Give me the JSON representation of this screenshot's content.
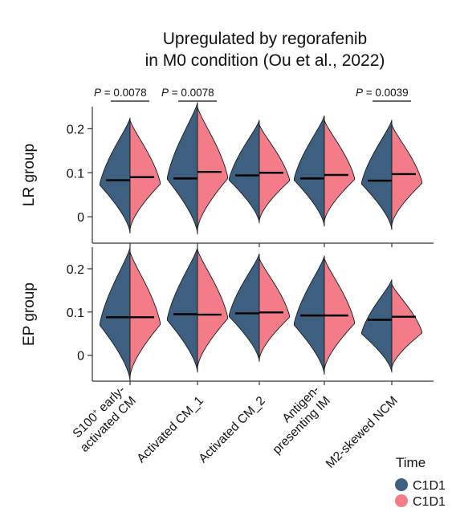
{
  "chart_data": {
    "type": "split-violin",
    "title": [
      "Upregulated by regorafenib",
      "in M0 condition (Ou et al., 2022)"
    ],
    "categories": [
      "S100+ early-activated CM",
      "Activated CM_1",
      "Activated CM_2",
      "Antigen-presenting IM",
      "M2-skewed NCM"
    ],
    "category_label_lines": [
      [
        "S100",
        "activated CM"
      ],
      [
        "Activated CM_1"
      ],
      [
        "Activated CM_2"
      ],
      [
        "Antigen-",
        "presenting IM"
      ],
      [
        "M2-skewed NCM"
      ]
    ],
    "category_label_extra": {
      "superscript": "+",
      "suffix": " early-"
    },
    "legend": {
      "title": "Time",
      "entries": [
        {
          "label": "C1D1",
          "color": "#3d5f80"
        },
        {
          "label": "C1D1",
          "color": "#f47c88"
        }
      ]
    },
    "yticks": [
      0,
      0.1,
      0.2
    ],
    "ytick_labels": [
      "0",
      "0.1",
      "0.2"
    ],
    "ylim": [
      -0.06,
      0.25
    ],
    "panels": [
      {
        "ylabel": "LR group",
        "pvalues": [
          {
            "index": 0,
            "label": "= 0.0078"
          },
          {
            "index": 1,
            "label": "= 0.0078"
          },
          {
            "index": 4,
            "label": "= 0.0039"
          }
        ],
        "series": [
          {
            "color": "#3d5f80",
            "medians": [
              0.083,
              0.087,
              0.094,
              0.087,
              0.082
            ],
            "mins": [
              -0.038,
              -0.04,
              -0.015,
              -0.022,
              -0.03
            ],
            "maxs": [
              0.225,
              0.26,
              0.22,
              0.23,
              0.22
            ]
          },
          {
            "color": "#f47c88",
            "medians": [
              0.09,
              0.102,
              0.1,
              0.095,
              0.097
            ],
            "mins": [
              -0.03,
              -0.03,
              -0.01,
              -0.012,
              -0.02
            ],
            "maxs": [
              0.22,
              0.25,
              0.21,
              0.22,
              0.21
            ]
          }
        ]
      },
      {
        "ylabel": "EP group",
        "pvalues": [],
        "series": [
          {
            "color": "#3d5f80",
            "medians": [
              0.088,
              0.095,
              0.097,
              0.092,
              0.082
            ],
            "mins": [
              -0.06,
              -0.04,
              -0.015,
              -0.045,
              -0.04
            ],
            "maxs": [
              0.25,
              0.25,
              0.235,
              0.23,
              0.175
            ]
          },
          {
            "color": "#f47c88",
            "medians": [
              0.088,
              0.094,
              0.099,
              0.092,
              0.089
            ],
            "mins": [
              -0.05,
              -0.03,
              -0.01,
              -0.035,
              -0.03
            ],
            "maxs": [
              0.24,
              0.245,
              0.225,
              0.225,
              0.165
            ]
          }
        ]
      }
    ]
  }
}
